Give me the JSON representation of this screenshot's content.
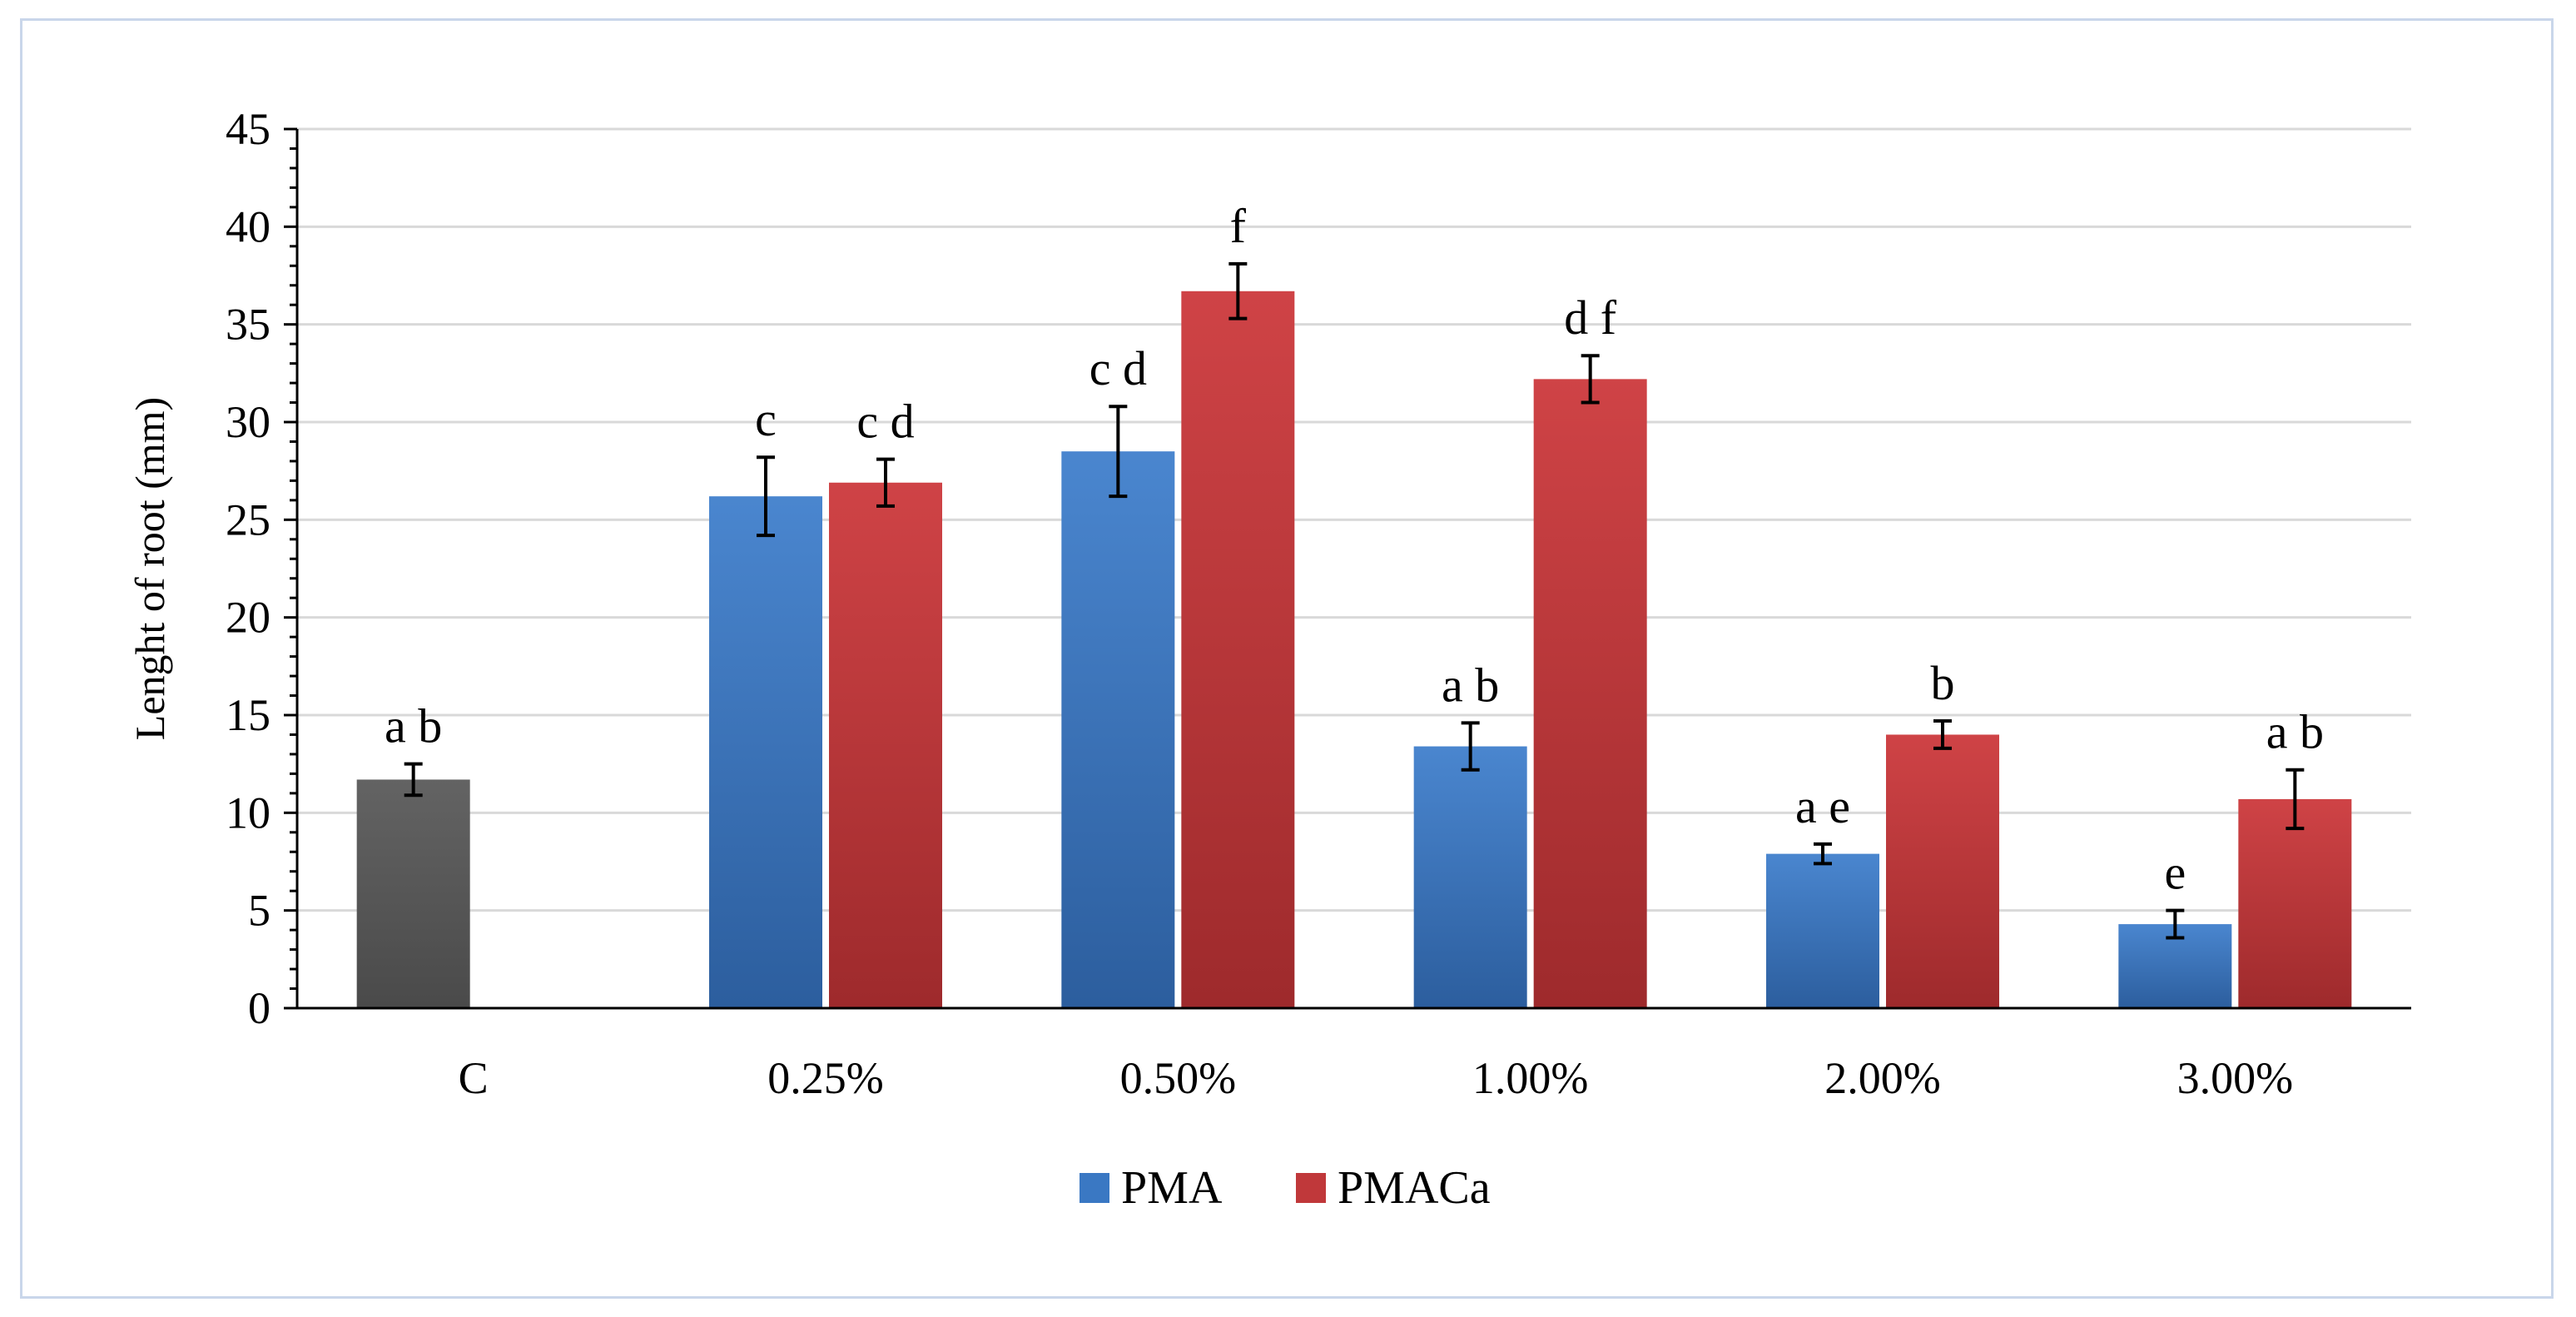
{
  "chart_data": {
    "type": "bar",
    "title": "",
    "xlabel": "",
    "ylabel": "Lenght of root  (mm)",
    "ylim": [
      0,
      45
    ],
    "yticks": [
      0,
      5,
      10,
      15,
      20,
      25,
      30,
      35,
      40,
      45
    ],
    "categories": [
      "C",
      "0.25%",
      "0.50%",
      "1.00%",
      "2.00%",
      "3.00%"
    ],
    "control": {
      "category": "C",
      "value": 11.7,
      "error": 0.8,
      "label": "a b",
      "color": "#595959"
    },
    "series": [
      {
        "name": "PMA",
        "color": "#3a78c3",
        "values": [
          null,
          26.2,
          28.5,
          13.4,
          7.9,
          4.3
        ],
        "errors": [
          null,
          2.0,
          2.3,
          1.2,
          0.5,
          0.7
        ],
        "labels": [
          null,
          "c",
          "c d",
          "a b",
          "a e",
          "e"
        ]
      },
      {
        "name": "PMACa",
        "color": "#c0383a",
        "values": [
          null,
          26.9,
          36.7,
          32.2,
          14.0,
          10.7
        ],
        "errors": [
          null,
          1.2,
          1.4,
          1.2,
          0.7,
          1.5
        ],
        "labels": [
          null,
          "c d",
          "f",
          "d f",
          "b",
          "a b"
        ]
      }
    ],
    "grid": true,
    "legend": "bottom-center"
  }
}
